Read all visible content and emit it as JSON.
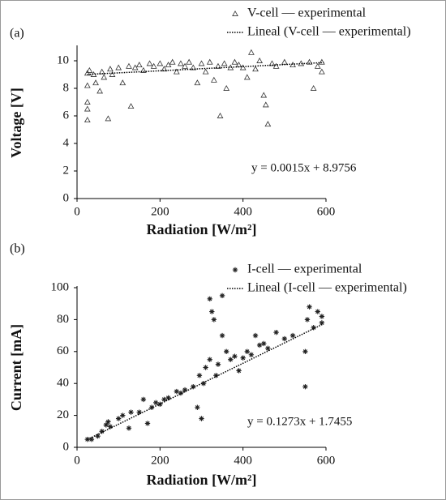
{
  "chart_data": [
    {
      "type": "scatter",
      "panel": "(a)",
      "xlabel": "Radiation [W/m²]",
      "ylabel": "Voltage [V]",
      "annotation": "y = 0.0015x + 8.9756",
      "xlim": [
        0,
        600
      ],
      "xticks": [
        0,
        200,
        400,
        600
      ],
      "ylim": [
        0,
        11
      ],
      "yticks": [
        0,
        2,
        4,
        6,
        8,
        10
      ],
      "series": [
        {
          "name": "V-cell — experimental",
          "color": "#333333",
          "marker": "triangle",
          "x": [
            25,
            25,
            25,
            25,
            25,
            30,
            40,
            45,
            55,
            60,
            65,
            75,
            80,
            85,
            100,
            110,
            125,
            130,
            140,
            150,
            160,
            175,
            185,
            200,
            210,
            220,
            230,
            240,
            250,
            260,
            270,
            280,
            290,
            300,
            310,
            320,
            330,
            340,
            345,
            355,
            360,
            370,
            380,
            390,
            400,
            410,
            420,
            430,
            440,
            450,
            455,
            460,
            470,
            480,
            500,
            520,
            540,
            560,
            570,
            580,
            590,
            590
          ],
          "values": [
            9.1,
            8.2,
            7.0,
            6.5,
            5.7,
            9.3,
            9.0,
            8.4,
            7.8,
            9.2,
            8.8,
            5.8,
            9.4,
            9.0,
            9.5,
            8.4,
            9.6,
            6.7,
            9.5,
            9.7,
            9.3,
            9.8,
            9.6,
            9.8,
            9.4,
            9.7,
            9.9,
            9.2,
            9.8,
            9.6,
            9.9,
            9.5,
            8.4,
            9.8,
            9.2,
            9.9,
            8.6,
            9.6,
            6.0,
            9.8,
            8.0,
            9.5,
            9.9,
            9.7,
            9.5,
            8.8,
            10.6,
            9.4,
            10.0,
            7.5,
            6.8,
            5.4,
            9.8,
            9.6,
            9.9,
            9.7,
            9.8,
            9.9,
            8.0,
            9.6,
            9.9,
            9.2
          ]
        },
        {
          "name": "Lineal (V-cell — experimental)",
          "color": "#000000",
          "style": "dotted",
          "x": [
            25,
            595
          ],
          "values": [
            9.01,
            9.87
          ]
        }
      ]
    },
    {
      "type": "scatter",
      "panel": "(b)",
      "xlabel": "Radiation [W/m²]",
      "ylabel": "Current [mA]",
      "annotation": "y = 0.1273x + 1.7455",
      "xlim": [
        0,
        600
      ],
      "xticks": [
        0,
        200,
        400,
        600
      ],
      "ylim": [
        0,
        100
      ],
      "yticks": [
        0,
        20,
        40,
        60,
        80,
        100
      ],
      "series": [
        {
          "name": "I-cell — experimental",
          "color": "#222222",
          "marker": "asterisk",
          "x": [
            25,
            35,
            50,
            60,
            70,
            75,
            80,
            100,
            110,
            125,
            130,
            150,
            160,
            170,
            180,
            190,
            200,
            210,
            220,
            240,
            250,
            260,
            280,
            290,
            295,
            300,
            305,
            310,
            320,
            320,
            325,
            330,
            335,
            340,
            350,
            350,
            360,
            370,
            380,
            390,
            400,
            410,
            420,
            430,
            440,
            450,
            460,
            480,
            500,
            520,
            550,
            550,
            555,
            560,
            570,
            580,
            590,
            590
          ],
          "values": [
            5,
            5,
            7,
            10,
            14,
            16,
            13,
            18,
            20,
            12,
            22,
            22,
            30,
            15,
            25,
            28,
            27,
            30,
            31,
            35,
            34,
            36,
            38,
            25,
            45,
            18,
            40,
            50,
            55,
            93,
            85,
            80,
            45,
            52,
            95,
            70,
            60,
            55,
            57,
            48,
            56,
            60,
            58,
            70,
            64,
            65,
            62,
            72,
            68,
            70,
            38,
            60,
            80,
            88,
            75,
            85,
            82,
            78
          ]
        },
        {
          "name": "Lineal (I-cell — experimental)",
          "color": "#000000",
          "style": "dotted",
          "x": [
            25,
            590
          ],
          "values": [
            4.93,
            76.85
          ]
        }
      ]
    }
  ]
}
